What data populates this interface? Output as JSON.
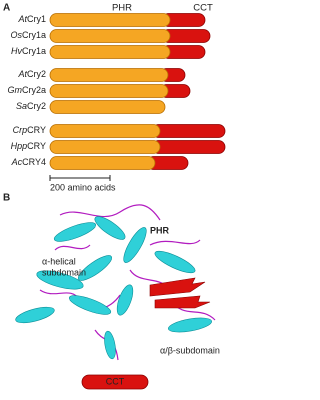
{
  "panel_a": {
    "label": "A",
    "domains": [
      "PHR",
      "CCT"
    ],
    "proteins": [
      {
        "species": "At",
        "name": "Cry1"
      },
      {
        "species": "Os",
        "name": "Cry1a"
      },
      {
        "species": "Hv",
        "name": "Cry1a"
      },
      {
        "species": "At",
        "name": "Cry2"
      },
      {
        "species": "Gm",
        "name": "Cry2a"
      },
      {
        "species": "Sa",
        "name": "Cry2"
      },
      {
        "species": "Crp",
        "name": "CRY"
      },
      {
        "species": "Hpp",
        "name": "CRY"
      },
      {
        "species": "Ac",
        "name": "CRY4"
      }
    ],
    "scale_bar": "200 amino acids"
  },
  "panel_b": {
    "label": "B",
    "labels": {
      "phr": "PHR",
      "alpha_helical": [
        "α-helical",
        "subdomain"
      ],
      "alpha_beta": "α/β-subdomain",
      "cct": "CCT"
    }
  }
}
